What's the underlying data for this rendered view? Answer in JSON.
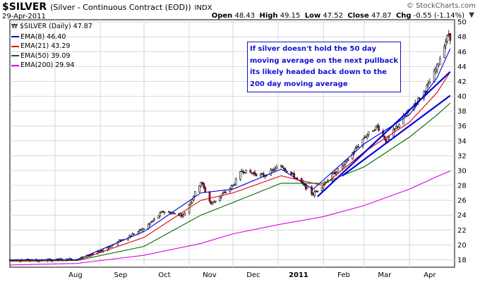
{
  "header": {
    "symbol": "$SILVER",
    "description": "(Silver - Continuous Contract (EOD))",
    "exchange": "INDX",
    "date": "29-Apr-2011",
    "brand": "© StockCharts.com",
    "open_label": "Open",
    "open": "48.43",
    "high_label": "High",
    "high": "49.15",
    "low_label": "Low",
    "low": "47.52",
    "close_label": "Close",
    "close": "47.87",
    "chg_label": "Chg",
    "chg": "-0.55 (-1.14%)",
    "dropdown_icon": "triangle-down-icon"
  },
  "legend": [
    {
      "label": "$SILVER (Daily) 47.87",
      "color": "#000000",
      "icon": "candlestick-icon"
    },
    {
      "label": "EMA(8) 46.40",
      "color": "#0000cc"
    },
    {
      "label": "EMA(21) 43.29",
      "color": "#e00000"
    },
    {
      "label": "EMA(50) 39.09",
      "color": "#006600"
    },
    {
      "label": "EMA(200) 29.94",
      "color": "#e000e0"
    }
  ],
  "annotation": {
    "text": "If silver doesn't hold the 50 day moving average on the next pullback its likely headed back down to the 200 day moving average",
    "color": "#1212d6"
  },
  "chart_data": {
    "type": "candlestick",
    "title": "$SILVER (Silver - Continuous Contract (EOD))",
    "y_ticks": [
      "18",
      "20",
      "22",
      "24",
      "26",
      "28",
      "30",
      "32",
      "34",
      "36",
      "38",
      "40",
      "42",
      "44",
      "46",
      "48",
      "50"
    ],
    "ylim": [
      17,
      50.3
    ],
    "x_ticks": [
      "Aug",
      "Sep",
      "Oct",
      "Nov",
      "Dec",
      "2011",
      "Feb",
      "Mar",
      "Apr"
    ],
    "x_tick_bold": "2011",
    "grid": true,
    "price_path": [
      {
        "x": "2010-07-01",
        "y": 18.0
      },
      {
        "x": "2010-07-20",
        "y": 17.9
      },
      {
        "x": "2010-08-16",
        "y": 18.1
      },
      {
        "x": "2010-09-01",
        "y": 19.1
      },
      {
        "x": "2010-09-15",
        "y": 20.6
      },
      {
        "x": "2010-10-01",
        "y": 22.2
      },
      {
        "x": "2010-10-14",
        "y": 24.5
      },
      {
        "x": "2010-10-28",
        "y": 24.0
      },
      {
        "x": "2010-11-09",
        "y": 28.5
      },
      {
        "x": "2010-11-16",
        "y": 25.5
      },
      {
        "x": "2010-12-01",
        "y": 28.0
      },
      {
        "x": "2010-12-07",
        "y": 30.0
      },
      {
        "x": "2010-12-22",
        "y": 29.3
      },
      {
        "x": "2011-01-03",
        "y": 30.7
      },
      {
        "x": "2011-01-12",
        "y": 29.2
      },
      {
        "x": "2011-01-25",
        "y": 26.8
      },
      {
        "x": "2011-02-04",
        "y": 28.8
      },
      {
        "x": "2011-02-16",
        "y": 31.0
      },
      {
        "x": "2011-03-01",
        "y": 34.5
      },
      {
        "x": "2011-03-10",
        "y": 36.0
      },
      {
        "x": "2011-03-16",
        "y": 34.0
      },
      {
        "x": "2011-03-31",
        "y": 37.9
      },
      {
        "x": "2011-04-08",
        "y": 39.8
      },
      {
        "x": "2011-04-14",
        "y": 41.5
      },
      {
        "x": "2011-04-20",
        "y": 44.0
      },
      {
        "x": "2011-04-25",
        "y": 47.0
      },
      {
        "x": "2011-04-28",
        "y": 48.4
      },
      {
        "x": "2011-04-29",
        "y": 47.87
      }
    ],
    "series": [
      {
        "name": "EMA(8)",
        "color": "#0000cc",
        "points": [
          {
            "x": "2010-07-01",
            "y": 18.0
          },
          {
            "x": "2010-08-16",
            "y": 18.0
          },
          {
            "x": "2010-10-01",
            "y": 21.8
          },
          {
            "x": "2010-11-09",
            "y": 27.0
          },
          {
            "x": "2010-12-01",
            "y": 27.5
          },
          {
            "x": "2011-01-03",
            "y": 30.2
          },
          {
            "x": "2011-01-25",
            "y": 27.5
          },
          {
            "x": "2011-03-01",
            "y": 33.6
          },
          {
            "x": "2011-04-01",
            "y": 37.5
          },
          {
            "x": "2011-04-20",
            "y": 42.5
          },
          {
            "x": "2011-04-29",
            "y": 46.4
          }
        ]
      },
      {
        "name": "EMA(21)",
        "color": "#e00000",
        "points": [
          {
            "x": "2010-07-01",
            "y": 17.9
          },
          {
            "x": "2010-08-16",
            "y": 17.9
          },
          {
            "x": "2010-10-01",
            "y": 21.0
          },
          {
            "x": "2010-11-09",
            "y": 26.0
          },
          {
            "x": "2010-12-01",
            "y": 27.0
          },
          {
            "x": "2011-01-03",
            "y": 29.3
          },
          {
            "x": "2011-02-01",
            "y": 28.0
          },
          {
            "x": "2011-03-01",
            "y": 32.5
          },
          {
            "x": "2011-04-01",
            "y": 36.5
          },
          {
            "x": "2011-04-20",
            "y": 40.5
          },
          {
            "x": "2011-04-29",
            "y": 43.29
          }
        ]
      },
      {
        "name": "EMA(50)",
        "color": "#006600",
        "points": [
          {
            "x": "2010-07-01",
            "y": 17.8
          },
          {
            "x": "2010-08-16",
            "y": 17.9
          },
          {
            "x": "2010-10-01",
            "y": 19.8
          },
          {
            "x": "2010-11-09",
            "y": 24.0
          },
          {
            "x": "2010-12-01",
            "y": 25.7
          },
          {
            "x": "2011-01-03",
            "y": 28.3
          },
          {
            "x": "2011-02-01",
            "y": 28.3
          },
          {
            "x": "2011-03-01",
            "y": 30.5
          },
          {
            "x": "2011-04-01",
            "y": 34.5
          },
          {
            "x": "2011-04-20",
            "y": 37.5
          },
          {
            "x": "2011-04-29",
            "y": 39.09
          }
        ]
      },
      {
        "name": "EMA(200)",
        "color": "#e000e0",
        "points": [
          {
            "x": "2010-07-01",
            "y": 17.3
          },
          {
            "x": "2010-08-16",
            "y": 17.5
          },
          {
            "x": "2010-10-01",
            "y": 18.6
          },
          {
            "x": "2010-11-09",
            "y": 20.2
          },
          {
            "x": "2010-12-01",
            "y": 21.5
          },
          {
            "x": "2011-01-03",
            "y": 22.8
          },
          {
            "x": "2011-02-01",
            "y": 23.8
          },
          {
            "x": "2011-03-01",
            "y": 25.3
          },
          {
            "x": "2011-04-01",
            "y": 27.5
          },
          {
            "x": "2011-04-20",
            "y": 29.2
          },
          {
            "x": "2011-04-29",
            "y": 29.94
          }
        ]
      }
    ],
    "trendlines": [
      {
        "color": "#0000dd",
        "points": [
          {
            "x": "2011-01-28",
            "y": 26.5
          },
          {
            "x": "2011-04-29",
            "y": 43.3
          }
        ]
      },
      {
        "color": "#0000dd",
        "points": [
          {
            "x": "2011-02-14",
            "y": 29.3
          },
          {
            "x": "2011-04-29",
            "y": 40.1
          }
        ]
      }
    ]
  }
}
